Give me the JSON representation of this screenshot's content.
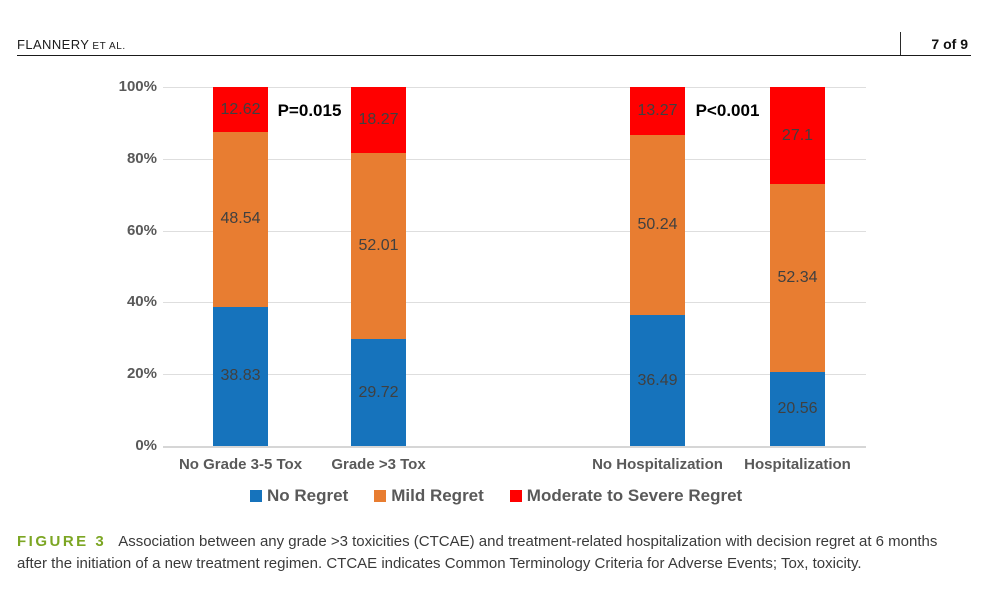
{
  "header": {
    "author": "FLANNERY",
    "etal": "ET AL.",
    "page_indicator": "7 of 9"
  },
  "chart_data": {
    "type": "bar",
    "stacked": true,
    "title": "",
    "xlabel": "",
    "ylabel": "",
    "ylim": [
      0,
      100
    ],
    "grid": true,
    "legend_position": "bottom",
    "y_ticks": [
      "0%",
      "20%",
      "40%",
      "60%",
      "80%",
      "100%"
    ],
    "categories": [
      "No Grade 3-5 Tox",
      "Grade >3 Tox",
      "No Hospitalization",
      "Hospitalization"
    ],
    "series": [
      {
        "name": "No Regret",
        "color": "#1673BC",
        "values": [
          38.83,
          29.72,
          36.49,
          20.56
        ]
      },
      {
        "name": "Mild Regret",
        "color": "#E87D31",
        "values": [
          48.54,
          52.01,
          50.24,
          52.34
        ]
      },
      {
        "name": "Moderate to Severe Regret",
        "color": "#FF0000",
        "values": [
          12.62,
          18.27,
          13.27,
          27.1
        ]
      }
    ],
    "annotations": [
      {
        "text": "P=0.015",
        "between": [
          0,
          1
        ]
      },
      {
        "text": "P<0.001",
        "between": [
          2,
          3
        ]
      }
    ],
    "text_colors": {
      "data_label": "#404040",
      "axis_label": "#595959",
      "annotation": "#000000"
    }
  },
  "caption": {
    "label": "FIGURE 3",
    "label_color": "#7CA623",
    "text": "Association between any grade >3 toxicities (CTCAE) and treatment-related hospitalization with decision regret at 6 months after the initiation of a new treatment regimen. CTCAE indicates Common Terminology Criteria for Adverse Events; Tox, toxicity."
  }
}
